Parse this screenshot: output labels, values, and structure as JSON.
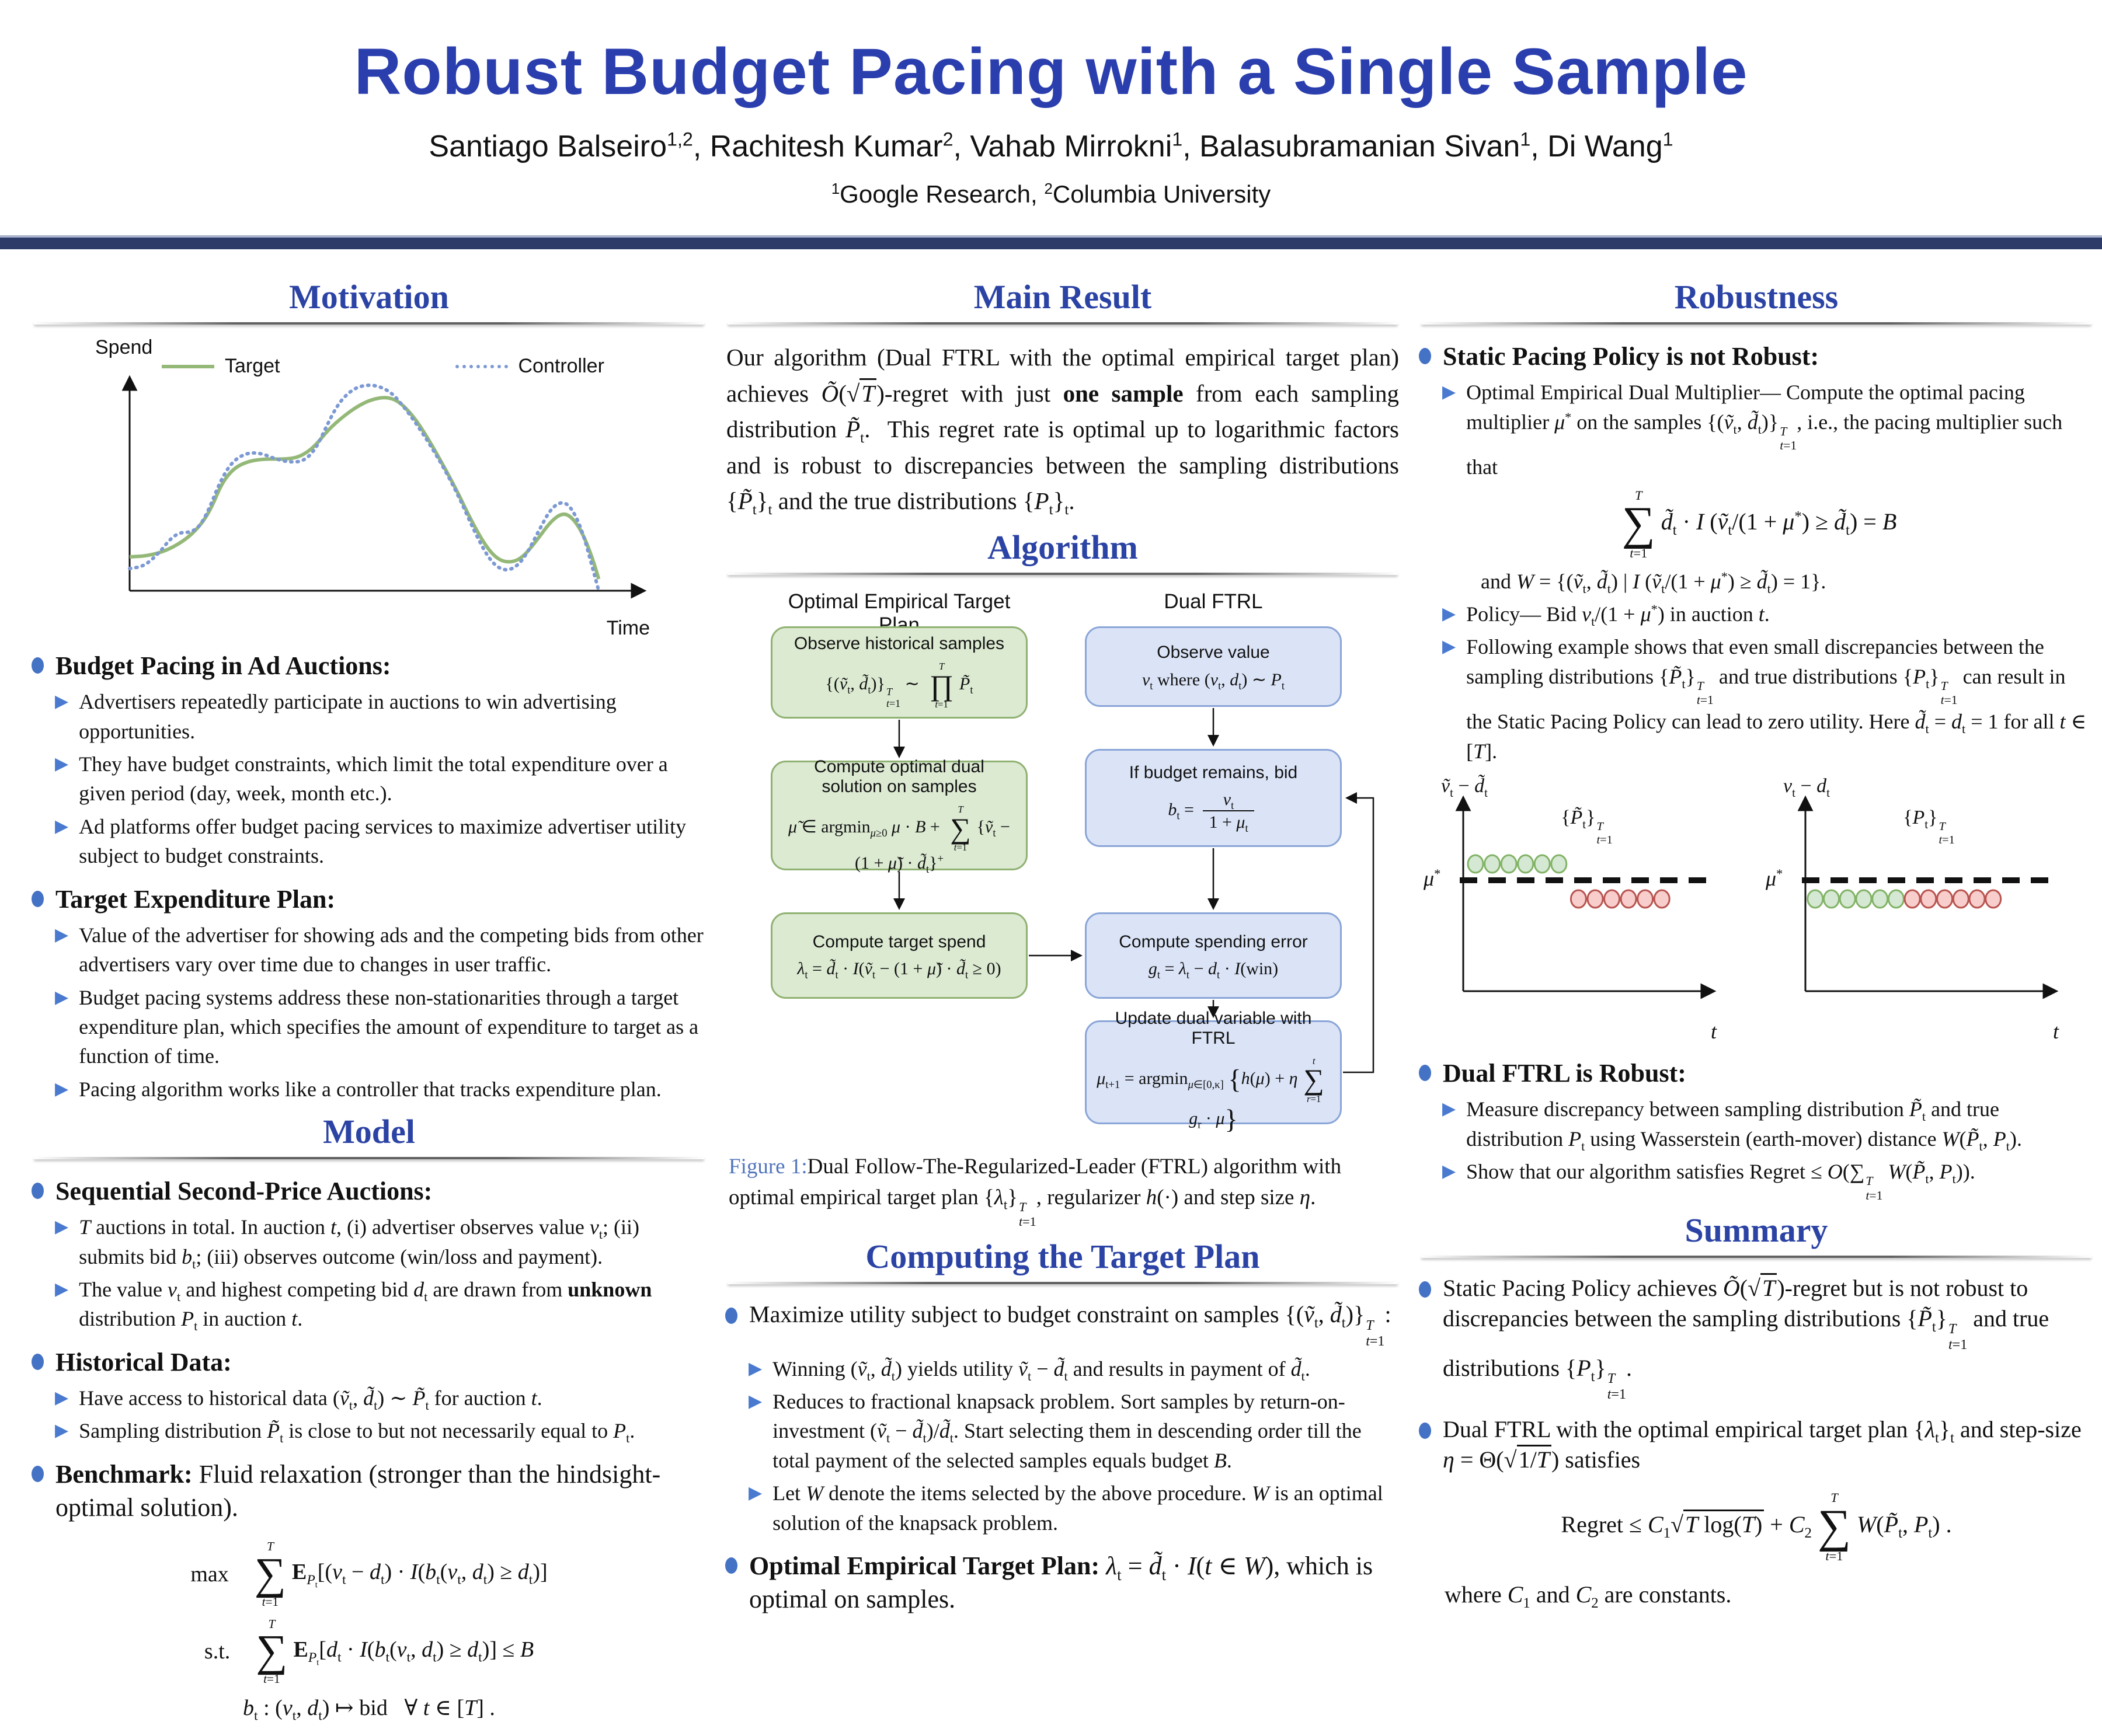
{
  "colors": {
    "accent_heading_blue": "#2b43a4",
    "title_blue": "#2b3eae",
    "bullet_blue": "#4472c4",
    "triangle_blue": "#4a7ad0",
    "navy_bar": "#2d3b69",
    "target_green": "#94b877",
    "controller_blue": "#7d99d4",
    "box_green_fill": "#dcead2",
    "box_green_stroke": "#8fb172",
    "box_blue_fill": "#dbe4f7",
    "box_blue_stroke": "#8aa5d8",
    "dot_green_fill": "#d5e8d4",
    "dot_green_stroke": "#82b366",
    "dot_red_fill": "#f8cecc",
    "dot_red_stroke": "#b85450",
    "figure_label_blue": "#5276bd"
  },
  "header": {
    "title": "Robust Budget Pacing with a Single Sample",
    "authors_html": "Santiago Balseiro<sup>1,2</sup>, Rachitesh Kumar<sup>2</sup>, Vahab Mirrokni<sup>1</sup>, Balasubramanian Sivan<sup>1</sup>, Di Wang<sup>1</sup>",
    "affiliation_html": "<sup>1</sup>Google Research, <sup>2</sup>Columbia University"
  },
  "motivation": {
    "heading": "Motivation",
    "figure": {
      "type": "line",
      "ylabel": "Spend",
      "xlabel": "Time",
      "legend": [
        "Target",
        "Controller"
      ],
      "series": [
        {
          "name": "Target",
          "color": "#94b877",
          "style": "solid",
          "points": [
            [
              0,
              0.145
            ],
            [
              0.04,
              0.15
            ],
            [
              0.08,
              0.175
            ],
            [
              0.12,
              0.225
            ],
            [
              0.15,
              0.29
            ],
            [
              0.17,
              0.36
            ],
            [
              0.19,
              0.46
            ],
            [
              0.215,
              0.525
            ],
            [
              0.245,
              0.555
            ],
            [
              0.28,
              0.565
            ],
            [
              0.32,
              0.563
            ],
            [
              0.35,
              0.572
            ],
            [
              0.38,
              0.613
            ],
            [
              0.41,
              0.69
            ],
            [
              0.44,
              0.745
            ],
            [
              0.47,
              0.79
            ],
            [
              0.5,
              0.82
            ],
            [
              0.53,
              0.83
            ],
            [
              0.555,
              0.812
            ],
            [
              0.585,
              0.75
            ],
            [
              0.615,
              0.655
            ],
            [
              0.645,
              0.545
            ],
            [
              0.675,
              0.43
            ],
            [
              0.705,
              0.3
            ],
            [
              0.735,
              0.19
            ],
            [
              0.76,
              0.133
            ],
            [
              0.785,
              0.12
            ],
            [
              0.81,
              0.14
            ],
            [
              0.84,
              0.215
            ],
            [
              0.87,
              0.3
            ],
            [
              0.895,
              0.335
            ],
            [
              0.915,
              0.31
            ],
            [
              0.935,
              0.245
            ],
            [
              0.955,
              0.14
            ],
            [
              0.968,
              0.05
            ]
          ]
        },
        {
          "name": "Controller",
          "color": "#7d99d4",
          "style": "dotted",
          "points": [
            [
              0,
              0.095
            ],
            [
              0.03,
              0.105
            ],
            [
              0.06,
              0.16
            ],
            [
              0.085,
              0.225
            ],
            [
              0.105,
              0.25
            ],
            [
              0.125,
              0.25
            ],
            [
              0.145,
              0.275
            ],
            [
              0.165,
              0.355
            ],
            [
              0.185,
              0.46
            ],
            [
              0.21,
              0.55
            ],
            [
              0.24,
              0.59
            ],
            [
              0.27,
              0.59
            ],
            [
              0.3,
              0.565
            ],
            [
              0.33,
              0.55
            ],
            [
              0.36,
              0.555
            ],
            [
              0.385,
              0.61
            ],
            [
              0.405,
              0.7
            ],
            [
              0.43,
              0.8
            ],
            [
              0.455,
              0.855
            ],
            [
              0.48,
              0.88
            ],
            [
              0.51,
              0.88
            ],
            [
              0.54,
              0.85
            ],
            [
              0.565,
              0.79
            ],
            [
              0.59,
              0.72
            ],
            [
              0.62,
              0.625
            ],
            [
              0.65,
              0.52
            ],
            [
              0.68,
              0.4
            ],
            [
              0.71,
              0.26
            ],
            [
              0.74,
              0.14
            ],
            [
              0.765,
              0.09
            ],
            [
              0.79,
              0.09
            ],
            [
              0.815,
              0.14
            ],
            [
              0.845,
              0.26
            ],
            [
              0.87,
              0.355
            ],
            [
              0.895,
              0.385
            ],
            [
              0.915,
              0.345
            ],
            [
              0.935,
              0.25
            ],
            [
              0.955,
              0.1
            ],
            [
              0.968,
              0.0
            ]
          ]
        }
      ]
    },
    "b1": "Budget Pacing in Ad Auctions:",
    "b1_subs": [
      "Advertisers repeatedly participate in auctions to win advertising opportunities.",
      "They have budget constraints, which limit the total expenditure over a given period (day, week, month etc.).",
      "Ad platforms offer budget pacing services to maximize advertiser utility subject to budget constraints."
    ],
    "b2": "Target Expenditure Plan:",
    "b2_subs": [
      "Value of the advertiser for showing ads and the competing bids from other advertisers vary over time due to changes in user traffic.",
      "Budget pacing systems address these non-stationarities through a target expenditure plan, which specifies the amount of expenditure to target as a function of time.",
      "Pacing algorithm works like a controller that tracks expenditure plan."
    ]
  },
  "model": {
    "heading": "Model",
    "h1": "Sequential Second-Price Auctions:",
    "h1_subs_html": [
      "<i>T</i> auctions in total. In auction <i>t</i>, (i) advertiser observes value <i>v</i><sub>t</sub>; (ii) submits bid <i>b</i><sub>t</sub>; (iii) observes outcome (win/loss and payment).",
      "The value <i>v</i><sub>t</sub> and highest competing bid <i>d</i><sub>t</sub> are drawn from <b>unknown</b> distribution <i>P</i><sub>t</sub> in auction <i>t</i>."
    ],
    "h2": "Historical Data:",
    "h2_subs_html": [
      "Have access to historical data (<i>ṽ</i><sub>t</sub>, <i>d̃</i><sub>t</sub>) ∼ <i>P̃</i><sub>t</sub> for auction <i>t</i>.",
      "Sampling distribution <i>P̃</i><sub>t</sub> is close to but not necessarily equal to <i>P</i><sub>t</sub>."
    ],
    "h3_html": "<b>Benchmark:</b> Fluid relaxation (stronger than the hindsight-optimal solution).",
    "eq1_pre": "max",
    "eq1_html": "<span class='bigop'><span class='lim'><i>T</i></span><span class='op'>∑</span><span class='lim'><i>t</i>=1</span></span><b>E</b><sub><i>P</i><sub>t</sub></sub>[(<i>v</i><sub>t</sub> − <i>d</i><sub>t</sub>) · <i>I</i>(<i>b</i><sub>t</sub>(<i>v</i><sub>t</sub>, <i>d</i><sub>t</sub>) ≥ <i>d</i><sub>t</sub>)]",
    "eq2_pre": "s.t.",
    "eq2_html": "<span class='bigop'><span class='lim'><i>T</i></span><span class='op'>∑</span><span class='lim'><i>t</i>=1</span></span><b>E</b><sub><i>P</i><sub>t</sub></sub>[<i>d</i><sub>t</sub> · <i>I</i>(<i>b</i><sub>t</sub>(<i>v</i><sub>t</sub>, <i>d</i><sub>t</sub>) ≥ <i>d</i><sub>t</sub>)] ≤ <i>B</i>",
    "eq3_html": "<i>b</i><sub>t</sub> : (<i>v</i><sub>t</sub>, <i>d</i><sub>t</sub>) ↦ bid&nbsp;&nbsp;&nbsp;∀ <i>t</i> ∈ [<i>T</i>] ."
  },
  "main_result": {
    "heading": "Main Result",
    "text_html": "Our algorithm (Dual FTRL with the optimal empirical target plan) achieves <i>Õ</i>(<span class='sqrt'>√<span class='rad'><i>T</i></span></span>)-regret with just <b>one sample</b> from each sampling distribution <i>P̃</i><sub>t</sub>.&nbsp; This regret rate is optimal up to logarithmic factors and is robust to discrepancies between the sampling distributions {<i>P̃</i><sub>t</sub>}<sub>t</sub> and the true distributions {<i>P</i><sub>t</sub>}<sub>t</sub>."
  },
  "algorithm": {
    "heading": "Algorithm",
    "left_title": "Optimal Empirical Target Plan",
    "right_title": "Dual FTRL",
    "green_boxes": [
      {
        "title": "Observe historical samples",
        "formula_html": "{(<i>ṽ</i><sub>t</sub>, <i>d̃</i><sub>t</sub>)}<span class='ss'><span><i>T</i></span><span><i>t</i>=1</span></span> ∼ <span class='bigop sm'><span class='lim'><i>T</i></span><span class='op'>∏</span><span class='lim'><i>t</i>=1</span></span><i>P̃</i><sub>t</sub>"
      },
      {
        "title": "Compute optimal dual solution on samples",
        "formula_html": "<i>μ̃</i> ∈ argmin<sub><i>μ</i>≥0</sub> <i>μ</i> · <i>B</i> + <span class='bigop sm'><span class='lim'><i>T</i></span><span class='op'>∑</span><span class='lim'><i>t</i>=1</span></span>{<i>ṽ</i><sub>t</sub> − (1 + <i>μ̃</i>) · <i>d̃</i><sub>t</sub>}<sup>+</sup>"
      },
      {
        "title": "Compute target spend",
        "formula_html": "<i>λ</i><sub>t</sub> = <i>d̃</i><sub>t</sub> · <i>I</i>(<i>ṽ</i><sub>t</sub> − (1 + <i>μ̃</i>) · <i>d̃</i><sub>t</sub> ≥ 0)"
      }
    ],
    "blue_boxes": [
      {
        "title": "Observe value",
        "formula_html": "<i>v</i><sub>t</sub> where (<i>v</i><sub>t</sub>, <i>d</i><sub>t</sub>) ∼ <i>P</i><sub>t</sub>"
      },
      {
        "title": "If budget remains, bid",
        "formula_html": "<i>b</i><sub>t</sub> = <span class='frac'><span class='num'><i>v</i><sub>t</sub></span><span class='den'>1 + <i>μ</i><sub>t</sub></span></span>"
      },
      {
        "title": "Compute spending error",
        "formula_html": "<i>g</i><sub>t</sub> = <i>λ</i><sub>t</sub> − <i>d</i><sub>t</sub> · <i>I</i>(win)"
      },
      {
        "title": "Update dual variable with FTRL",
        "formula_html": "<i>μ</i><sub>t+1</sub> = argmin<sub><i>μ</i>∈[0,κ]</sub> <span class='bigbr'>{</span><i>h</i>(<i>μ</i>) + <i>η</i><span class='bigop sm'><span class='lim'><i>t</i></span><span class='op'>∑</span><span class='lim'><i>r</i>=1</span></span><i>g</i><sub>r</sub> · <i>μ</i><span class='bigbr'>}</span>"
      }
    ],
    "caption_prefix": "Figure 1:",
    "caption_html": "Dual Follow-The-Regularized-Leader (FTRL) algorithm with optimal empirical target plan {<i>λ</i><sub>t</sub>}<span class='ss'><span><i>T</i></span><span><i>t</i>=1</span></span>, regularizer <i>h</i>(·) and step size <i>η</i>."
  },
  "target_plan": {
    "heading": "Computing the Target Plan",
    "b1_html": "Maximize utility subject to budget constraint on samples {(<i>ṽ</i><sub>t</sub>, <i>d̃</i><sub>t</sub>)}<span class='ss'><span><i>T</i></span><span><i>t</i>=1</span></span>:",
    "b1_subs_html": [
      "Winning (<i>ṽ</i><sub>t</sub>, <i>d̃</i><sub>t</sub>) yields utility <i>ṽ</i><sub>t</sub> − <i>d̃</i><sub>t</sub> and results in payment of <i>d̃</i><sub>t</sub>.",
      "Reduces to fractional knapsack problem. Sort samples by return-on-investment (<i>ṽ</i><sub>t</sub> − <i>d̃</i><sub>t</sub>)/<i>d̃</i><sub>t</sub>. Start selecting them in descending order till the total payment of the selected samples equals budget <i>B</i>.",
      "Let <i>W</i> denote the items selected by the above procedure. <i>W</i> is an optimal solution of the knapsack problem."
    ],
    "b2_html": "<b>Optimal Empirical Target Plan:</b> <i>λ</i><sub>t</sub> = <i>d̃</i><sub>t</sub> · <i>I</i>(<i>t</i> ∈ <i>W</i>), which is optimal on samples."
  },
  "robustness": {
    "heading": "Robustness",
    "b1": "Static Pacing Policy is not Robust:",
    "s1_html": "Optimal Empirical Dual Multiplier— Compute the optimal pacing multiplier <i>μ</i><sup>*</sup> on the samples {(<i>ṽ</i><sub>t</sub>, <i>d̃</i><sub>t</sub>)}<span class='ss'><span><i>T</i></span><span><i>t</i>=1</span></span>, i.e., the pacing multiplier such that",
    "eq_html": "<span class='bigop'><span class='lim'><i>T</i></span><span class='op'>∑</span><span class='lim'><i>t</i>=1</span></span><i>d̃</i><sub>t</sub> · <i>I</i> (<i>ṽ</i><sub>t</sub>/(1 + <i>μ</i><sup>*</sup>) ≥ <i>d̃</i><sub>t</sub>) = <i>B</i>",
    "s1b_html": "and <i>W</i> = {(<i>ṽ</i><sub>t</sub>, <i>d̃</i><sub>t</sub>) | <i>I</i> (<i>ṽ</i><sub>t</sub>/(1 + <i>μ</i><sup>*</sup>) ≥ <i>d̃</i><sub>t</sub>) = 1}.",
    "s2_html": "Policy— Bid <i>v</i><sub>t</sub>/(1 + <i>μ</i><sup>*</sup>) in auction <i>t</i>.",
    "s3_html": "Following example shows that even small discrepancies between the sampling distributions {<i>P̃</i><sub>t</sub>}<span class='ss'><span><i>T</i></span><span><i>t</i>=1</span></span> and true distributions {<i>P</i><sub>t</sub>}<span class='ss'><span><i>T</i></span><span><i>t</i>=1</span></span> can result in the Static Pacing Policy can lead to zero utility. Here <i>d̃</i><sub>t</sub> = <i>d</i><sub>t</sub> = 1 for all <i>t</i> ∈ [<i>T</i>].",
    "plots": [
      {
        "ylabel_html": "<i>ṽ</i><sub>t</sub> − <i>d̃</i><sub>t</sub>",
        "annotation_html": "{<i>P̃</i><sub>t</sub>}<span class='ss'><span><i>T</i></span><span><i>t</i>=1</span></span>",
        "mu_html": "<i>μ</i><sup>*</sup>",
        "xlabel_html": "<i>t</i>",
        "dots": [
          {
            "color": "green",
            "count": 6,
            "start": 0.05,
            "step": 0.068,
            "above": true
          },
          {
            "color": "red",
            "count": 6,
            "start": 0.47,
            "step": 0.068,
            "above": false
          }
        ]
      },
      {
        "ylabel_html": "<i>v</i><sub>t</sub> − <i>d</i><sub>t</sub>",
        "annotation_html": "{<i>P</i><sub>t</sub>}<span class='ss'><span><i>T</i></span><span><i>t</i>=1</span></span>",
        "mu_html": "<i>μ</i><sup>*</sup>",
        "xlabel_html": "<i>t</i>",
        "dots": [
          {
            "color": "green",
            "count": 6,
            "start": 0.04,
            "step": 0.066,
            "above": false
          },
          {
            "color": "red",
            "count": 6,
            "start": 0.436,
            "step": 0.066,
            "above": false
          }
        ]
      }
    ],
    "b2": "Dual FTRL is Robust:",
    "b2_subs_html": [
      "Measure discrepancy between sampling distribution <i>P̃</i><sub>t</sub> and true distribution <i>P</i><sub>t</sub> using Wasserstein (earth-mover) distance <i>W</i>(<i>P̃</i><sub>t</sub>, <i>P</i><sub>t</sub>).",
      "Show that our algorithm satisfies Regret ≤ <i>O</i>(∑<span class='ss'><span><i>T</i></span><span><i>t</i>=1</span></span> <i>W</i>(<i>P̃</i><sub>t</sub>, <i>P</i><sub>t</sub>))."
    ]
  },
  "summary": {
    "heading": "Summary",
    "s1_html": "Static Pacing Policy achieves <i>Õ</i>(<span class='sqrt'>√<span class='rad'><i>T</i></span></span>)-regret but is not robust to discrepancies between the sampling distributions {<i>P̃</i><sub>t</sub>}<span class='ss'><span><i>T</i></span><span><i>t</i>=1</span></span> and true distributions {<i>P</i><sub>t</sub>}<span class='ss'><span><i>T</i></span><span><i>t</i>=1</span></span>.",
    "s2_html": "Dual FTRL with the optimal empirical target plan {<i>λ</i><sub>t</sub>}<sub>t</sub> and step-size <i>η</i> = Θ(<span class='sqrt'>√<span class='rad'>1/<i>T</i></span></span>) satisfies",
    "eq_html": "Regret ≤ <i>C</i><sub>1</sub><span class='sqrt'>√<span class='rad'><i>T</i> log(<i>T</i>)</span></span> + <i>C</i><sub>2</sub><span class='bigop'><span class='lim'><i>T</i></span><span class='op'>∑</span><span class='lim'><i>t</i>=1</span></span><i>W</i>(<i>P̃</i><sub>t</sub>, <i>P</i><sub>t</sub>) .",
    "s3_html": "where <i>C</i><sub>1</sub> and <i>C</i><sub>2</sub> are constants."
  }
}
